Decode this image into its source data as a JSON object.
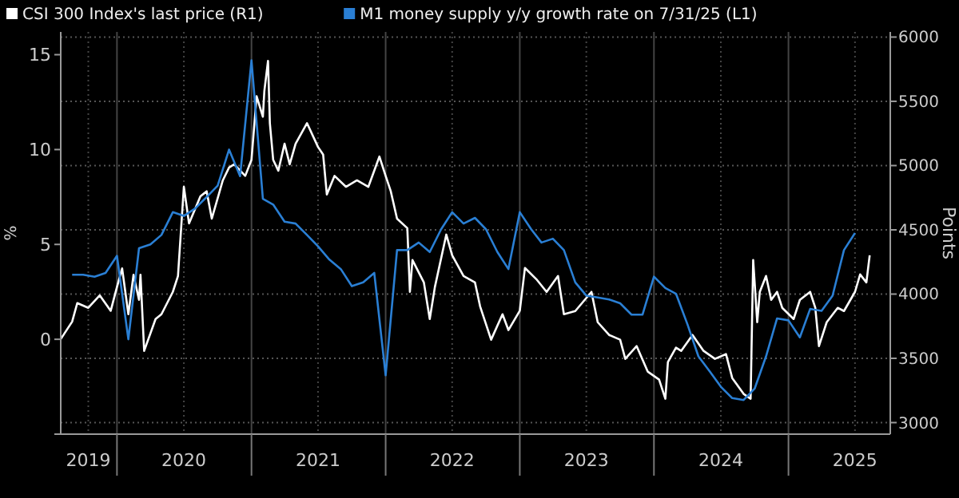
{
  "chart_data": {
    "type": "line",
    "ylabel": "%",
    "y2label": "Points",
    "legend": "top left",
    "grid": true,
    "line_style": "solid",
    "xlim": [
      "2019-08-01",
      "2025-10-05"
    ],
    "xticks": [
      {
        "value": "2019-10-15",
        "label": "2019"
      },
      {
        "value": "2020-01-01",
        "label": null
      },
      {
        "value": "2020-07-01",
        "label": "2020"
      },
      {
        "value": "2021-01-01",
        "label": null
      },
      {
        "value": "2021-07-01",
        "label": "2021"
      },
      {
        "value": "2022-01-01",
        "label": null
      },
      {
        "value": "2022-07-01",
        "label": "2022"
      },
      {
        "value": "2023-01-01",
        "label": null
      },
      {
        "value": "2023-07-01",
        "label": "2023"
      },
      {
        "value": "2024-01-01",
        "label": null
      },
      {
        "value": "2024-07-01",
        "label": "2024"
      },
      {
        "value": "2025-01-01",
        "label": null
      },
      {
        "value": "2025-07-01",
        "label": "2025"
      }
    ],
    "ylim": [
      -5,
      16.2
    ],
    "yticks": [
      {
        "value": -5,
        "label": null
      },
      0,
      5,
      10,
      15
    ],
    "y2lim": [
      2910,
      6040
    ],
    "y2ticks": [
      3000,
      3500,
      4000,
      4500,
      5000,
      5500,
      6000
    ],
    "series": [
      {
        "name": "CSI 300 Index's last price (R1)",
        "color": "#ffffff",
        "axis": "y2",
        "x": [
          "2019-08-01",
          "2019-09-01",
          "2019-09-15",
          "2019-10-15",
          "2019-11-15",
          "2019-12-15",
          "2020-01-01",
          "2020-01-15",
          "2020-02-01",
          "2020-02-15",
          "2020-03-01",
          "2020-03-05",
          "2020-03-15",
          "2020-04-15",
          "2020-05-01",
          "2020-06-01",
          "2020-06-15",
          "2020-07-01",
          "2020-07-15",
          "2020-08-15",
          "2020-09-01",
          "2020-09-15",
          "2020-10-15",
          "2020-11-01",
          "2020-11-15",
          "2020-12-15",
          "2021-01-01",
          "2021-01-15",
          "2021-02-01",
          "2021-02-05",
          "2021-02-15",
          "2021-02-20",
          "2021-03-01",
          "2021-03-15",
          "2021-04-01",
          "2021-04-15",
          "2021-05-01",
          "2021-06-01",
          "2021-07-01",
          "2021-07-15",
          "2021-07-25",
          "2021-08-15",
          "2021-09-15",
          "2021-10-15",
          "2021-11-15",
          "2021-12-15",
          "2022-01-01",
          "2022-01-15",
          "2022-02-01",
          "2022-03-01",
          "2022-03-08",
          "2022-03-15",
          "2022-04-15",
          "2022-05-01",
          "2022-05-15",
          "2022-06-15",
          "2022-07-01",
          "2022-08-01",
          "2022-09-01",
          "2022-09-15",
          "2022-10-15",
          "2022-11-15",
          "2022-12-01",
          "2023-01-01",
          "2023-01-15",
          "2023-02-15",
          "2023-03-15",
          "2023-04-15",
          "2023-05-01",
          "2023-06-01",
          "2023-07-15",
          "2023-08-01",
          "2023-09-01",
          "2023-10-01",
          "2023-10-15",
          "2023-11-15",
          "2023-12-15",
          "2024-01-15",
          "2024-02-01",
          "2024-02-08",
          "2024-03-01",
          "2024-03-15",
          "2024-04-15",
          "2024-05-15",
          "2024-06-15",
          "2024-07-15",
          "2024-08-01",
          "2024-09-01",
          "2024-09-20",
          "2024-09-27",
          "2024-10-08",
          "2024-10-15",
          "2024-11-01",
          "2024-11-15",
          "2024-12-01",
          "2024-12-15",
          "2025-01-15",
          "2025-02-01",
          "2025-03-01",
          "2025-03-15",
          "2025-03-25",
          "2025-04-15",
          "2025-05-15",
          "2025-06-01",
          "2025-07-01",
          "2025-07-15",
          "2025-08-01",
          "2025-08-10"
        ],
        "values": [
          3650,
          3785,
          3930,
          3893,
          3990,
          3870,
          4055,
          4200,
          3843,
          4150,
          3955,
          4150,
          3558,
          3806,
          3843,
          4017,
          4141,
          4835,
          4550,
          4760,
          4800,
          4587,
          4885,
          4985,
          5010,
          4920,
          5045,
          5540,
          5380,
          5580,
          5815,
          5330,
          5045,
          4960,
          5170,
          5010,
          5170,
          5330,
          5145,
          5085,
          4775,
          4920,
          4835,
          4885,
          4835,
          5070,
          4920,
          4800,
          4587,
          4513,
          4017,
          4265,
          4091,
          3806,
          4055,
          4463,
          4302,
          4141,
          4091,
          3905,
          3645,
          3843,
          3720,
          3870,
          4203,
          4116,
          4017,
          4141,
          3843,
          3868,
          4017,
          3781,
          3682,
          3645,
          3496,
          3595,
          3397,
          3335,
          3186,
          3471,
          3583,
          3558,
          3682,
          3558,
          3496,
          3533,
          3347,
          3223,
          3186,
          4265,
          3781,
          4017,
          4141,
          3955,
          4017,
          3893,
          3806,
          3955,
          4017,
          3893,
          3595,
          3781,
          3893,
          3868,
          4017,
          4153,
          4091,
          4302
        ]
      },
      {
        "name": "M1 money supply y/y growth rate on 7/31/25 (L1)",
        "color": "#2a7fd4",
        "x": [
          "2019-09-01",
          "2019-10-01",
          "2019-11-01",
          "2019-12-01",
          "2020-01-01",
          "2020-02-01",
          "2020-03-01",
          "2020-04-01",
          "2020-05-01",
          "2020-06-01",
          "2020-07-01",
          "2020-08-01",
          "2020-09-01",
          "2020-10-01",
          "2020-11-01",
          "2020-12-01",
          "2021-01-01",
          "2021-02-01",
          "2021-03-01",
          "2021-04-01",
          "2021-05-01",
          "2021-06-01",
          "2021-07-01",
          "2021-08-01",
          "2021-09-01",
          "2021-10-01",
          "2021-11-01",
          "2021-12-01",
          "2022-01-01",
          "2022-02-01",
          "2022-03-01",
          "2022-04-01",
          "2022-05-01",
          "2022-06-01",
          "2022-07-01",
          "2022-08-01",
          "2022-09-01",
          "2022-10-01",
          "2022-11-01",
          "2022-12-01",
          "2023-01-01",
          "2023-02-01",
          "2023-03-01",
          "2023-04-01",
          "2023-05-01",
          "2023-06-01",
          "2023-07-01",
          "2023-08-01",
          "2023-09-01",
          "2023-10-01",
          "2023-11-01",
          "2023-12-01",
          "2024-01-01",
          "2024-02-01",
          "2024-03-01",
          "2024-04-01",
          "2024-05-01",
          "2024-06-01",
          "2024-07-01",
          "2024-08-01",
          "2024-09-01",
          "2024-10-01",
          "2024-11-01",
          "2024-12-01",
          "2025-01-01",
          "2025-02-01",
          "2025-03-01",
          "2025-04-01",
          "2025-05-01",
          "2025-06-01",
          "2025-07-01"
        ],
        "values": [
          3.4,
          3.4,
          3.3,
          3.5,
          4.4,
          0.0,
          4.8,
          5.0,
          5.5,
          6.7,
          6.5,
          6.9,
          7.5,
          8.1,
          10.0,
          8.6,
          14.7,
          7.4,
          7.1,
          6.2,
          6.1,
          5.5,
          4.9,
          4.2,
          3.7,
          2.8,
          3.0,
          3.5,
          -1.9,
          4.7,
          4.7,
          5.1,
          4.6,
          5.8,
          6.7,
          6.1,
          6.4,
          5.8,
          4.6,
          3.7,
          6.7,
          5.8,
          5.1,
          5.3,
          4.7,
          3.0,
          2.3,
          2.2,
          2.1,
          1.9,
          1.3,
          1.3,
          3.3,
          2.7,
          2.4,
          0.8,
          -0.9,
          -1.7,
          -2.5,
          -3.1,
          -3.2,
          -2.6,
          -0.9,
          1.1,
          1.0,
          0.1,
          1.6,
          1.5,
          2.3,
          4.7,
          5.6
        ]
      }
    ]
  }
}
